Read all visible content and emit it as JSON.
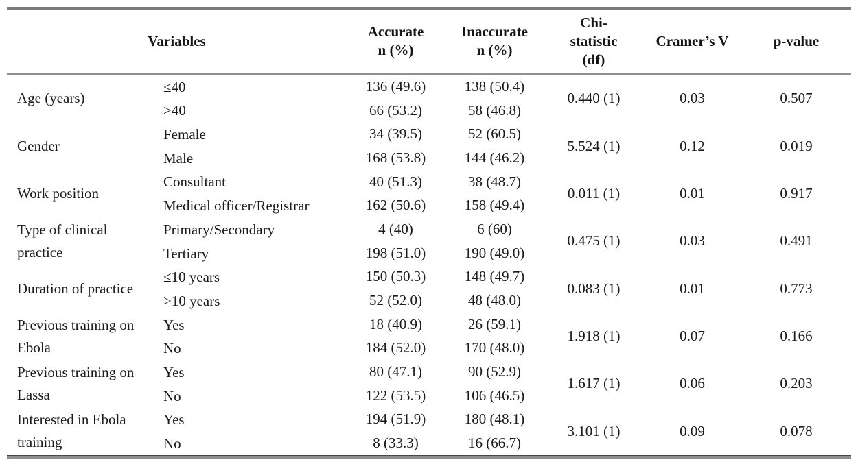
{
  "style": {
    "rule_color": "#808080",
    "dark_rule_color": "#474747",
    "text_color": "#1b1b1b"
  },
  "table": {
    "columns": [
      {
        "id": "variables",
        "colspan": 2,
        "lines": [
          "Variables"
        ]
      },
      {
        "id": "accurate",
        "lines": [
          "Accurate",
          "n (%)"
        ]
      },
      {
        "id": "inaccurate",
        "lines": [
          "Inaccurate",
          "n (%)"
        ]
      },
      {
        "id": "chi-statistic",
        "lines": [
          "Chi-",
          "statistic",
          "(df)"
        ]
      },
      {
        "id": "cramers-v",
        "lines": [
          "Cramer’s V"
        ]
      },
      {
        "id": "p-value",
        "lines": [
          "p-value"
        ]
      }
    ],
    "groups": [
      {
        "variable": "Age (years)",
        "rows": [
          {
            "category": "≤40",
            "accurate": "136 (49.6)",
            "inaccurate": "138 (50.4)"
          },
          {
            "category": ">40",
            "accurate": "66 (53.2)",
            "inaccurate": "58 (46.8)"
          }
        ],
        "chi_statistic_df": "0.440 (1)",
        "cramers_v": "0.03",
        "p_value": "0.507"
      },
      {
        "variable": "Gender",
        "rows": [
          {
            "category": "Female",
            "accurate": "34 (39.5)",
            "inaccurate": "52 (60.5)"
          },
          {
            "category": "Male",
            "accurate": "168 (53.8)",
            "inaccurate": "144 (46.2)"
          }
        ],
        "chi_statistic_df": "5.524 (1)",
        "cramers_v": "0.12",
        "p_value": "0.019"
      },
      {
        "variable": "Work position",
        "rows": [
          {
            "category": "Consultant",
            "accurate": "40 (51.3)",
            "inaccurate": "38 (48.7)"
          },
          {
            "category": "Medical officer/Registrar",
            "accurate": "162 (50.6)",
            "inaccurate": "158 (49.4)"
          }
        ],
        "chi_statistic_df": "0.011 (1)",
        "cramers_v": "0.01",
        "p_value": "0.917"
      },
      {
        "variable": "Type of clinical practice",
        "rows": [
          {
            "category": "Primary/Secondary",
            "accurate": "4 (40)",
            "inaccurate": "6 (60)"
          },
          {
            "category": "Tertiary",
            "accurate": "198 (51.0)",
            "inaccurate": "190 (49.0)"
          }
        ],
        "chi_statistic_df": "0.475 (1)",
        "cramers_v": "0.03",
        "p_value": "0.491"
      },
      {
        "variable": "Duration of practice",
        "rows": [
          {
            "category": "≤10 years",
            "accurate": "150 (50.3)",
            "inaccurate": "148 (49.7)"
          },
          {
            "category": ">10 years",
            "accurate": "52 (52.0)",
            "inaccurate": "48 (48.0)"
          }
        ],
        "chi_statistic_df": "0.083 (1)",
        "cramers_v": "0.01",
        "p_value": "0.773"
      },
      {
        "variable": "Previous training on Ebola",
        "rows": [
          {
            "category": "Yes",
            "accurate": "18 (40.9)",
            "inaccurate": "26 (59.1)"
          },
          {
            "category": "No",
            "accurate": "184 (52.0)",
            "inaccurate": "170 (48.0)"
          }
        ],
        "chi_statistic_df": "1.918 (1)",
        "cramers_v": "0.07",
        "p_value": "0.166"
      },
      {
        "variable": "Previous training on Lassa",
        "rows": [
          {
            "category": "Yes",
            "accurate": "80 (47.1)",
            "inaccurate": "90 (52.9)"
          },
          {
            "category": "No",
            "accurate": "122 (53.5)",
            "inaccurate": "106 (46.5)"
          }
        ],
        "chi_statistic_df": "1.617 (1)",
        "cramers_v": "0.06",
        "p_value": "0.203"
      },
      {
        "variable": "Interested in Ebola training",
        "rows": [
          {
            "category": "Yes",
            "accurate": "194 (51.9)",
            "inaccurate": "180 (48.1)"
          },
          {
            "category": "No",
            "accurate": "8 (33.3)",
            "inaccurate": "16 (66.7)"
          }
        ],
        "chi_statistic_df": "3.101 (1)",
        "cramers_v": "0.09",
        "p_value": "0.078"
      }
    ]
  }
}
